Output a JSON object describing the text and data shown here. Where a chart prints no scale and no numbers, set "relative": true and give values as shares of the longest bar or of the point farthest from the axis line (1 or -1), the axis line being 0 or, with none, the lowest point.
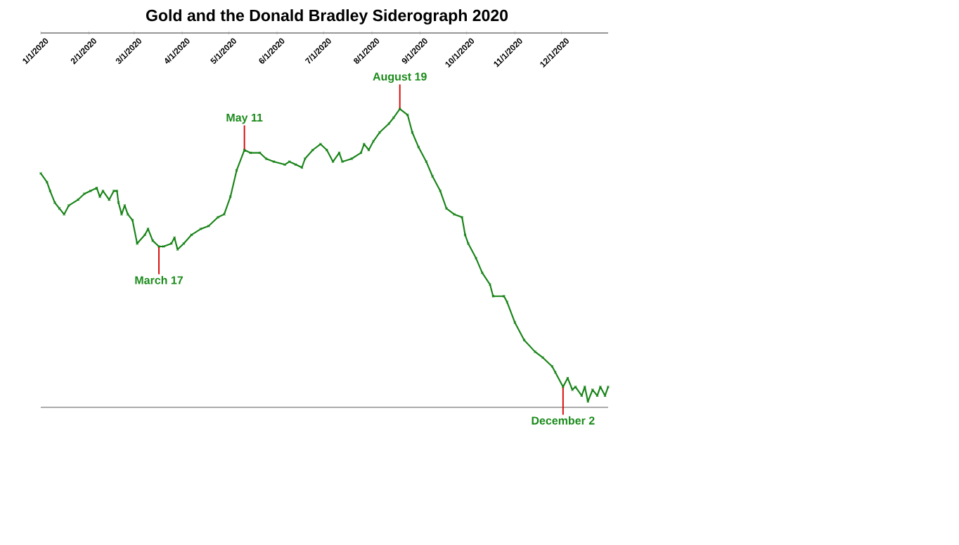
{
  "chart_data": {
    "type": "line",
    "title": "Gold and the Donald Bradley Siderograph 2020",
    "relative": true,
    "color": "#178317",
    "marker": "cross",
    "line_style": "solid",
    "x": [
      "2020-01-01",
      "2020-01-05",
      "2020-01-07",
      "2020-01-10",
      "2020-01-13",
      "2020-01-16",
      "2020-01-19",
      "2020-01-25",
      "2020-01-29",
      "2020-02-02",
      "2020-02-06",
      "2020-02-08",
      "2020-02-10",
      "2020-02-14",
      "2020-02-17",
      "2020-02-19",
      "2020-02-20",
      "2020-02-22",
      "2020-02-24",
      "2020-02-26",
      "2020-02-29",
      "2020-03-03",
      "2020-03-08",
      "2020-03-10",
      "2020-03-13",
      "2020-03-17",
      "2020-03-20",
      "2020-03-25",
      "2020-03-27",
      "2020-03-29",
      "2020-04-02",
      "2020-04-07",
      "2020-04-13",
      "2020-04-18",
      "2020-04-24",
      "2020-04-28",
      "2020-05-02",
      "2020-05-06",
      "2020-05-11",
      "2020-05-15",
      "2020-05-21",
      "2020-05-25",
      "2020-05-30",
      "2020-06-06",
      "2020-06-09",
      "2020-06-13",
      "2020-06-17",
      "2020-06-19",
      "2020-06-24",
      "2020-06-29",
      "2020-07-03",
      "2020-07-07",
      "2020-07-11",
      "2020-07-13",
      "2020-07-19",
      "2020-07-25",
      "2020-07-27",
      "2020-07-30",
      "2020-08-02",
      "2020-08-06",
      "2020-08-12",
      "2020-08-15",
      "2020-08-19",
      "2020-08-24",
      "2020-08-27",
      "2020-08-31",
      "2020-09-05",
      "2020-09-09",
      "2020-09-14",
      "2020-09-18",
      "2020-09-23",
      "2020-09-28",
      "2020-09-30",
      "2020-10-02",
      "2020-10-07",
      "2020-10-11",
      "2020-10-16",
      "2020-10-18",
      "2020-10-25",
      "2020-10-27",
      "2020-11-01",
      "2020-11-07",
      "2020-11-14",
      "2020-11-19",
      "2020-11-25",
      "2020-11-27",
      "2020-12-02",
      "2020-12-05",
      "2020-12-08",
      "2020-12-10",
      "2020-12-14",
      "2020-12-16",
      "2020-12-18",
      "2020-12-21",
      "2020-12-24",
      "2020-12-26",
      "2020-12-29",
      "2020-12-31"
    ],
    "values": [
      0.78,
      0.75,
      0.72,
      0.68,
      0.66,
      0.64,
      0.67,
      0.69,
      0.71,
      0.72,
      0.73,
      0.7,
      0.72,
      0.69,
      0.72,
      0.72,
      0.68,
      0.64,
      0.67,
      0.64,
      0.62,
      0.54,
      0.57,
      0.59,
      0.55,
      0.53,
      0.53,
      0.54,
      0.56,
      0.52,
      0.54,
      0.57,
      0.59,
      0.6,
      0.63,
      0.64,
      0.7,
      0.79,
      0.86,
      0.85,
      0.85,
      0.83,
      0.82,
      0.81,
      0.82,
      0.81,
      0.8,
      0.83,
      0.86,
      0.88,
      0.86,
      0.82,
      0.85,
      0.82,
      0.83,
      0.85,
      0.88,
      0.86,
      0.89,
      0.92,
      0.95,
      0.97,
      1,
      0.98,
      0.92,
      0.87,
      0.82,
      0.77,
      0.72,
      0.66,
      0.64,
      0.63,
      0.57,
      0.54,
      0.49,
      0.44,
      0.4,
      0.36,
      0.36,
      0.34,
      0.27,
      0.21,
      0.17,
      0.15,
      0.12,
      0.1,
      0.05,
      0.08,
      0.04,
      0.05,
      0.02,
      0.05,
      0,
      0.04,
      0.02,
      0.05,
      0.02,
      0.05
    ],
    "xlim": [
      "2020-01-01",
      "2020-12-31"
    ],
    "xticks": [
      {
        "value": "2020-01-01",
        "label": "1/1/2020"
      },
      {
        "value": "2020-02-01",
        "label": "2/1/2020"
      },
      {
        "value": "2020-03-01",
        "label": "3/1/2020"
      },
      {
        "value": "2020-04-01",
        "label": "4/1/2020"
      },
      {
        "value": "2020-05-01",
        "label": "5/1/2020"
      },
      {
        "value": "2020-06-01",
        "label": "6/1/2020"
      },
      {
        "value": "2020-07-01",
        "label": "7/1/2020"
      },
      {
        "value": "2020-08-01",
        "label": "8/1/2020"
      },
      {
        "value": "2020-09-01",
        "label": "9/1/2020"
      },
      {
        "value": "2020-10-01",
        "label": "10/1/2020"
      },
      {
        "value": "2020-11-01",
        "label": "11/1/2020"
      },
      {
        "value": "2020-12-01",
        "label": "12/1/2020"
      }
    ],
    "annotations": [
      {
        "text": "March 17",
        "x": "2020-03-17",
        "y": 0.53
      },
      {
        "text": "May 11",
        "x": "2020-05-11",
        "y": 0.86
      },
      {
        "text": "August 19",
        "x": "2020-08-19",
        "y": 1
      },
      {
        "text": "December 2",
        "x": "2020-12-02",
        "y": 0.05
      }
    ]
  }
}
